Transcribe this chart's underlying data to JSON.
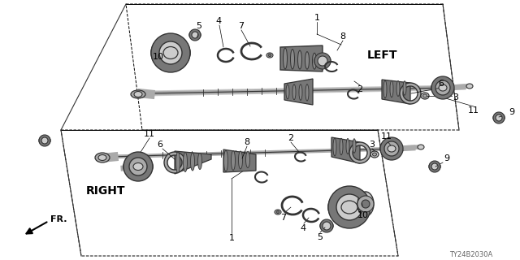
{
  "bg_color": "#ffffff",
  "diagram_code": "TY24B2030A",
  "left_label": "LEFT",
  "right_label": "RIGHT",
  "fr_label": "FR.",
  "lc": "#1a1a1a",
  "pc": "#555555",
  "dark": "#333333",
  "mid": "#777777",
  "light": "#aaaaaa",
  "vlight": "#cccccc",
  "figsize": [
    6.4,
    3.2
  ],
  "dpi": 100
}
